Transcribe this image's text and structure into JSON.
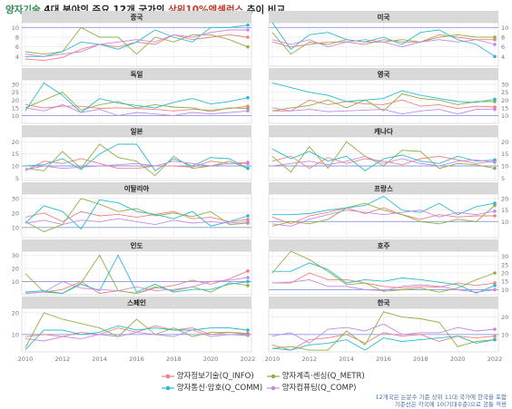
{
  "title": {
    "part1": "양자기술",
    "part2": " 4대 분야의 주요 12개 국가의 ",
    "part3": "상위10%엑셀런스",
    "part4": " 추이 비교"
  },
  "colors": {
    "Q_INFO": "#f08080",
    "Q_METR": "#8fb040",
    "Q_COMM": "#2bbbcf",
    "Q_COMP": "#c688e8",
    "ref_line": "#6a7fe0"
  },
  "legend": [
    {
      "key": "Q_INFO",
      "label": "양자정보기술(Q_INFO)"
    },
    {
      "key": "Q_METR",
      "label": "양자계측·센싱(Q_METR)"
    },
    {
      "key": "Q_COMM",
      "label": "양자통신·암호(Q_COMM)"
    },
    {
      "key": "Q_COMP",
      "label": "양자컴퓨팅(Q_COMP)"
    }
  ],
  "footnote": {
    "line1": "12개국은 논문수 기준 상위 11대 국가에 한국을 포함",
    "line2": "기준선은 각국에 10(기대수준)으로 공통 적용"
  },
  "chart_data": {
    "type": "line",
    "x_ticks": [
      "2010",
      "2012",
      "2014",
      "2016",
      "2018",
      "2020",
      "2022"
    ],
    "x": [
      2010,
      2011,
      2012,
      2013,
      2014,
      2015,
      2016,
      2017,
      2018,
      2019,
      2020,
      2021,
      2022
    ],
    "reference_line": 10,
    "series_names": [
      "Q_INFO",
      "Q_METR",
      "Q_COMM",
      "Q_COMP"
    ],
    "panels": [
      {
        "country": "중국",
        "ylim": [
          2,
          11
        ],
        "yticks": [
          4,
          6,
          8,
          10
        ],
        "series": {
          "Q_INFO": [
            3.5,
            3.2,
            3.8,
            5.5,
            6.5,
            6.0,
            7.0,
            6.5,
            8.5,
            7.5,
            8.0,
            8.5,
            8.0
          ],
          "Q_METR": [
            5.0,
            4.5,
            5.0,
            10.0,
            8.0,
            8.0,
            4.5,
            8.0,
            7.0,
            8.5,
            8.5,
            7.5,
            6.0
          ],
          "Q_COMM": [
            4.0,
            4.0,
            5.0,
            7.0,
            6.5,
            5.5,
            7.0,
            9.5,
            8.0,
            7.0,
            10.0,
            10.0,
            10.5
          ],
          "Q_COMP": [
            4.5,
            4.0,
            4.5,
            5.0,
            6.5,
            7.0,
            7.5,
            7.0,
            8.5,
            8.0,
            9.0,
            9.5,
            9.5
          ]
        }
      },
      {
        "country": "미국",
        "ylim": [
          2,
          11
        ],
        "yticks": [
          4,
          6,
          8,
          10
        ],
        "series": {
          "Q_INFO": [
            7.0,
            6.0,
            6.5,
            7.0,
            7.0,
            6.5,
            7.5,
            7.0,
            7.0,
            8.5,
            8.0,
            7.5,
            7.5
          ],
          "Q_METR": [
            9.0,
            4.5,
            7.0,
            6.5,
            7.5,
            7.0,
            7.0,
            7.5,
            7.0,
            8.0,
            8.5,
            8.0,
            8.0
          ],
          "Q_COMM": [
            11.0,
            5.5,
            8.5,
            9.0,
            7.5,
            7.0,
            8.0,
            6.5,
            9.0,
            9.5,
            7.5,
            6.5,
            4.0
          ],
          "Q_COMP": [
            7.5,
            6.5,
            7.5,
            6.0,
            7.0,
            7.5,
            7.0,
            6.0,
            7.0,
            7.5,
            7.0,
            7.5,
            6.5
          ]
        }
      },
      {
        "country": "독일",
        "ylim": [
          5,
          33
        ],
        "yticks": [
          10,
          15,
          20,
          25,
          30
        ],
        "series": {
          "Q_INFO": [
            17.0,
            15.0,
            16.0,
            16.0,
            14.5,
            15.0,
            14.5,
            14.0,
            13.0,
            14.0,
            13.5,
            14.5,
            16.0
          ],
          "Q_METR": [
            15.0,
            20.0,
            25.0,
            13.5,
            17.0,
            19.0,
            15.0,
            17.0,
            15.5,
            15.0,
            12.5,
            15.0,
            14.5
          ],
          "Q_COMM": [
            13.0,
            31.0,
            23.0,
            12.0,
            21.0,
            18.0,
            16.5,
            15.0,
            18.5,
            21.0,
            17.5,
            19.0,
            21.5
          ],
          "Q_COMP": [
            15.0,
            13.0,
            17.0,
            12.0,
            14.0,
            10.0,
            12.0,
            11.0,
            10.0,
            12.0,
            11.0,
            12.0,
            13.0
          ]
        }
      },
      {
        "country": "영국",
        "ylim": [
          5,
          33
        ],
        "yticks": [
          10,
          15,
          20,
          25,
          30
        ],
        "series": {
          "Q_INFO": [
            13.0,
            13.0,
            20.0,
            17.0,
            19.0,
            17.5,
            17.0,
            20.0,
            16.0,
            17.0,
            14.5,
            16.0,
            15.5
          ],
          "Q_METR": [
            13.0,
            15.0,
            16.5,
            20.0,
            15.0,
            20.0,
            13.0,
            24.0,
            21.0,
            20.0,
            17.0,
            19.0,
            19.0
          ],
          "Q_COMM": [
            31.0,
            28.0,
            25.0,
            23.0,
            19.0,
            20.0,
            21.0,
            26.0,
            23.0,
            21.0,
            19.0,
            18.5,
            20.5
          ],
          "Q_COMP": [
            15.0,
            13.0,
            14.0,
            12.5,
            13.0,
            13.5,
            14.0,
            11.0,
            13.0,
            14.0,
            11.0,
            14.0,
            14.0
          ]
        }
      },
      {
        "country": "일본",
        "ylim": [
          4,
          22
        ],
        "yticks": [
          5,
          10,
          15,
          20
        ],
        "series": {
          "Q_INFO": [
            8.0,
            12.0,
            11.0,
            13.0,
            11.0,
            9.0,
            9.0,
            10.0,
            10.0,
            9.5,
            12.0,
            11.0,
            11.5
          ],
          "Q_METR": [
            9.0,
            8.0,
            16.0,
            9.0,
            19.0,
            13.5,
            12.0,
            6.0,
            14.0,
            9.0,
            10.0,
            12.0,
            9.0
          ],
          "Q_COMM": [
            10.0,
            10.5,
            13.0,
            8.5,
            15.0,
            19.0,
            19.0,
            8.0,
            13.0,
            10.0,
            13.5,
            13.0,
            9.0
          ],
          "Q_COMP": [
            8.5,
            10.0,
            9.0,
            9.5,
            10.0,
            10.5,
            11.0,
            10.0,
            12.0,
            11.0,
            10.0,
            11.0,
            11.0
          ]
        }
      },
      {
        "country": "캐나다",
        "ylim": [
          4,
          22
        ],
        "yticks": [
          5,
          10,
          15,
          20
        ],
        "series": {
          "Q_INFO": [
            12.0,
            14.0,
            9.0,
            13.5,
            11.0,
            13.0,
            12.0,
            10.5,
            13.0,
            14.0,
            12.5,
            11.0,
            12.0
          ],
          "Q_METR": [
            14.0,
            7.5,
            18.0,
            9.0,
            20.0,
            14.0,
            10.0,
            16.5,
            16.0,
            9.0,
            11.0,
            10.5,
            9.0
          ],
          "Q_COMM": [
            17.0,
            13.0,
            16.0,
            12.0,
            14.0,
            8.0,
            13.0,
            14.5,
            12.0,
            11.0,
            14.0,
            12.0,
            12.5
          ],
          "Q_COMP": [
            10.0,
            11.0,
            12.0,
            10.5,
            12.0,
            14.0,
            11.0,
            13.0,
            11.0,
            10.0,
            12.0,
            12.5,
            11.5
          ]
        }
      },
      {
        "country": "이탈리아",
        "ylim": [
          3,
          33
        ],
        "yticks": [
          10,
          20,
          30
        ],
        "series": {
          "Q_INFO": [
            17.0,
            20.0,
            14.0,
            21.0,
            18.0,
            19.0,
            17.0,
            19.0,
            21.0,
            16.0,
            17.0,
            14.0,
            15.5
          ],
          "Q_METR": [
            14.0,
            7.0,
            12.0,
            30.0,
            26.0,
            21.0,
            23.0,
            18.0,
            20.0,
            17.5,
            21.0,
            12.0,
            13.0
          ],
          "Q_COMM": [
            13.0,
            25.0,
            21.0,
            9.0,
            29.0,
            27.0,
            21.0,
            19.0,
            16.0,
            21.0,
            11.0,
            14.0,
            18.0
          ],
          "Q_COMP": [
            13.0,
            15.0,
            12.0,
            15.0,
            14.0,
            16.0,
            14.0,
            12.0,
            15.0,
            13.0,
            14.0,
            13.0,
            14.0
          ]
        }
      },
      {
        "country": "프랑스",
        "ylim": [
          3,
          22
        ],
        "yticks": [
          10,
          15,
          20
        ],
        "series": {
          "Q_INFO": [
            12.0,
            9.0,
            12.5,
            14.0,
            16.0,
            13.5,
            16.0,
            13.0,
            11.0,
            13.0,
            12.0,
            12.5,
            12.5
          ],
          "Q_METR": [
            8.0,
            10.0,
            9.0,
            11.0,
            16.0,
            18.0,
            15.0,
            13.0,
            10.0,
            9.0,
            11.0,
            10.0,
            17.0
          ],
          "Q_COMM": [
            13.0,
            13.0,
            13.5,
            15.0,
            16.0,
            17.0,
            21.0,
            15.0,
            14.0,
            18.0,
            13.0,
            16.5,
            18.0
          ],
          "Q_COMP": [
            9.0,
            8.0,
            11.0,
            13.0,
            15.0,
            14.0,
            13.0,
            14.0,
            15.0,
            12.0,
            14.0,
            13.0,
            14.5
          ]
        }
      },
      {
        "country": "인도",
        "ylim": [
          0,
          33
        ],
        "yticks": [
          10,
          20,
          30
        ],
        "series": {
          "Q_INFO": [
            1.0,
            2.0,
            4.0,
            10.0,
            1.0,
            3.0,
            1.0,
            5.0,
            7.0,
            11.0,
            8.0,
            12.0,
            18.0
          ],
          "Q_METR": [
            16.0,
            2.0,
            1.0,
            9.0,
            30.0,
            3.0,
            1.0,
            6.0,
            3.0,
            6.0,
            2.0,
            9.0,
            7.0
          ],
          "Q_COMM": [
            2.0,
            3.0,
            1.0,
            8.0,
            3.0,
            30.0,
            2.0,
            8.0,
            2.0,
            4.0,
            4.0,
            8.0,
            10.0
          ],
          "Q_COMP": [
            1.0,
            2.0,
            10.0,
            5.0,
            4.0,
            3.0,
            6.0,
            3.0,
            4.0,
            6.0,
            10.0,
            11.0,
            13.0
          ]
        }
      },
      {
        "country": "호주",
        "ylim": [
          7,
          33
        ],
        "yticks": [
          10,
          15,
          20,
          25,
          30
        ],
        "series": {
          "Q_INFO": [
            14.0,
            14.0,
            20.0,
            16.0,
            16.0,
            14.0,
            12.0,
            11.0,
            12.0,
            11.5,
            14.0,
            12.5,
            14.0
          ],
          "Q_METR": [
            20.0,
            33.0,
            28.0,
            21.0,
            13.0,
            14.0,
            9.0,
            10.0,
            11.0,
            8.5,
            11.0,
            16.0,
            20.0
          ],
          "Q_COMM": [
            21.0,
            21.0,
            26.0,
            22.0,
            14.0,
            16.0,
            15.0,
            17.0,
            16.0,
            14.5,
            13.0,
            8.0,
            12.5
          ],
          "Q_COMP": [
            14.0,
            14.5,
            16.0,
            12.0,
            12.0,
            10.0,
            9.5,
            12.0,
            13.0,
            12.0,
            10.0,
            8.5,
            10.0
          ]
        }
      },
      {
        "country": "스페인",
        "ylim": [
          2,
          22
        ],
        "yticks": [
          10,
          20
        ],
        "series": {
          "Q_INFO": [
            9.0,
            10.0,
            9.0,
            11.0,
            10.0,
            13.0,
            11.0,
            14.0,
            12.0,
            13.0,
            10.0,
            11.0,
            10.5
          ],
          "Q_METR": [
            4.0,
            20.0,
            17.0,
            15.0,
            13.0,
            9.0,
            17.0,
            10.0,
            13.0,
            9.0,
            11.0,
            11.0,
            10.0
          ],
          "Q_COMM": [
            3.0,
            12.0,
            12.0,
            10.0,
            11.0,
            14.0,
            12.0,
            13.0,
            12.0,
            12.0,
            13.0,
            13.0,
            12.0
          ],
          "Q_COMP": [
            8.0,
            7.0,
            9.0,
            8.0,
            10.0,
            9.0,
            11.0,
            10.0,
            9.0,
            12.0,
            9.0,
            10.0,
            9.5
          ]
        }
      },
      {
        "country": "한국",
        "ylim": [
          0,
          25
        ],
        "yticks": [
          10,
          20
        ],
        "series": {
          "Q_INFO": [
            4.0,
            1.0,
            7.0,
            8.0,
            10.0,
            5.0,
            11.0,
            9.0,
            10.0,
            6.0,
            9.0,
            8.0,
            9.0
          ],
          "Q_METR": [
            2.0,
            3.0,
            1.0,
            1.0,
            12.0,
            4.0,
            23.0,
            20.0,
            19.0,
            17.0,
            3.0,
            6.0,
            7.0
          ],
          "Q_COMM": [
            2.0,
            1.0,
            4.0,
            5.0,
            7.0,
            1.0,
            8.0,
            6.0,
            7.0,
            8.0,
            9.0,
            5.0,
            7.0
          ],
          "Q_COMP": [
            9.0,
            11.0,
            5.0,
            13.0,
            14.0,
            12.0,
            16.0,
            10.0,
            11.0,
            11.0,
            14.0,
            12.0,
            13.0
          ]
        }
      }
    ]
  }
}
